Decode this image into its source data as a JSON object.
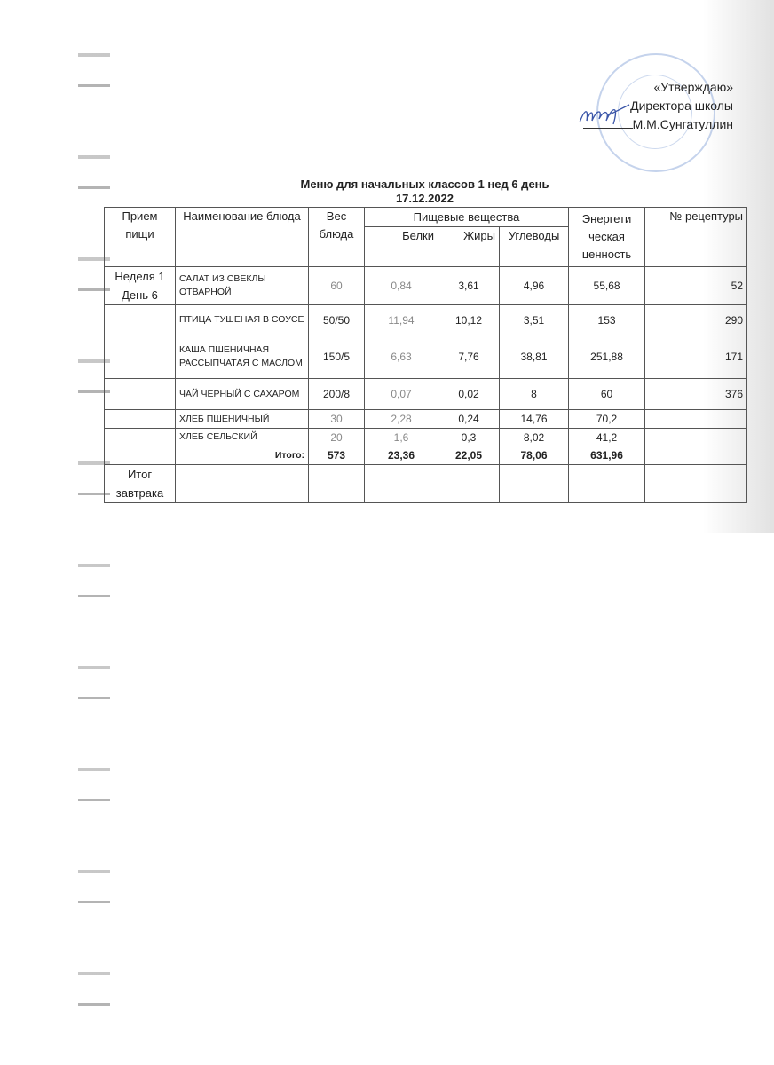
{
  "approval": {
    "line1": "«Утверждаю»",
    "line2": "Директора  школы",
    "signer": "М.М.Сунгатуллин"
  },
  "title": "Меню для начальных классов  1 нед 6 день",
  "date": "17.12.2022",
  "headers": {
    "meal": "Прием пищи",
    "dish": "Наименование блюда",
    "weight": "Вес блюда",
    "nutrients": "Пищевые вещества",
    "proteins": "Белки",
    "fats": "Жиры",
    "carbs": "Углеводы",
    "energy": "Энергети ческая ценность",
    "recipe": "№ рецептуры"
  },
  "meal_label": "Неделя 1 День 6",
  "rows": [
    {
      "dish": "САЛАТ ИЗ СВЕКЛЫ ОТВАРНОЙ",
      "weight": "60",
      "proteins": "0,84",
      "fats": "3,61",
      "carbs": "4,96",
      "energy": "55,68",
      "recipe": "52"
    },
    {
      "dish": "ПТИЦА ТУШЕНАЯ В СОУСЕ",
      "weight": "50/50",
      "proteins": "11,94",
      "fats": "10,12",
      "carbs": "3,51",
      "energy": "153",
      "recipe": "290"
    },
    {
      "dish": "КАША ПШЕНИЧНАЯ РАССЫПЧАТАЯ С МАСЛОМ",
      "weight": "150/5",
      "proteins": "6,63",
      "fats": "7,76",
      "carbs": "38,81",
      "energy": "251,88",
      "recipe": "171"
    },
    {
      "dish": "ЧАЙ ЧЕРНЫЙ С САХАРОМ",
      "weight": "200/8",
      "proteins": "0,07",
      "fats": "0,02",
      "carbs": "8",
      "energy": "60",
      "recipe": "376"
    },
    {
      "dish": "ХЛЕБ ПШЕНИЧНЫЙ",
      "weight": "30",
      "proteins": "2,28",
      "fats": "0,24",
      "carbs": "14,76",
      "energy": "70,2",
      "recipe": ""
    },
    {
      "dish": "ХЛЕБ СЕЛЬСКИЙ",
      "weight": "20",
      "proteins": "1,6",
      "fats": "0,3",
      "carbs": "8,02",
      "energy": "41,2",
      "recipe": ""
    }
  ],
  "total": {
    "label": "Итого:",
    "weight": "573",
    "proteins": "23,36",
    "fats": "22,05",
    "carbs": "78,06",
    "energy": "631,96"
  },
  "breakfast_total_label": "Итог завтрака"
}
